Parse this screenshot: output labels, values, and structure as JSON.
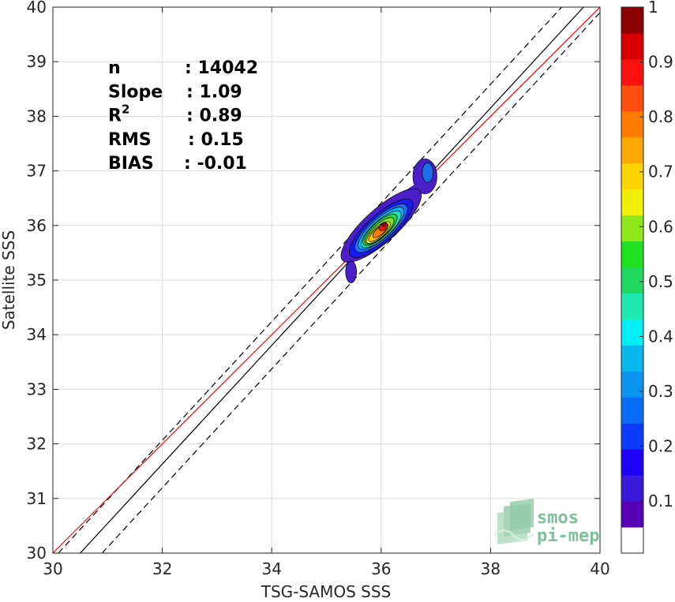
{
  "chart_data": {
    "type": "scatter",
    "subtype": "density-contour",
    "xlabel": "TSG-SAMOS SSS",
    "ylabel": "Satellite SSS",
    "xlim": [
      30,
      40
    ],
    "ylim": [
      30,
      40
    ],
    "xticks": [
      30,
      32,
      34,
      36,
      38,
      40
    ],
    "yticks": [
      30,
      31,
      32,
      33,
      34,
      35,
      36,
      37,
      38,
      39,
      40
    ],
    "grid": true,
    "stats": [
      {
        "key": "n",
        "sep": ": ",
        "value": "14042"
      },
      {
        "key": "Slope",
        "sep": ": ",
        "value": "1.09"
      },
      {
        "key": "R",
        "sup": "2",
        "sep": ": ",
        "value": "0.89"
      },
      {
        "key": "RMS",
        "sep": ": ",
        "value": "0.15"
      },
      {
        "key": "BIAS",
        "sep": ": ",
        "value": "-0.01"
      }
    ],
    "lines": [
      {
        "name": "one-to-one",
        "style": "solid",
        "color": "#000000",
        "x": [
          30.5,
          39.7
        ],
        "y": [
          30,
          40
        ]
      },
      {
        "name": "upper-bound",
        "style": "dashed",
        "color": "#000000",
        "x": [
          30.1,
          39.3
        ],
        "y": [
          30,
          40
        ]
      },
      {
        "name": "lower-bound",
        "style": "dashed",
        "color": "#000000",
        "x": [
          30.9,
          40.0
        ],
        "y": [
          30,
          39.9
        ]
      },
      {
        "name": "regression",
        "style": "solid",
        "color": "#ff0000",
        "x": [
          30.0,
          40.0
        ],
        "y": [
          30,
          40
        ]
      }
    ],
    "density_center": {
      "x": 36.05,
      "y": 36.0
    },
    "density_levels": [
      {
        "level": 0.05,
        "color": "#4b1fc8",
        "cx": 36.0,
        "cy": 36.0,
        "rx": 0.95,
        "ry": 0.3,
        "angle": -42
      },
      {
        "level": 0.1,
        "color": "#1a1aef",
        "cx": 36.0,
        "cy": 35.95,
        "rx": 0.75,
        "ry": 0.25,
        "angle": -42
      },
      {
        "level": 0.2,
        "color": "#1f6ff0",
        "cx": 36.0,
        "cy": 35.95,
        "rx": 0.62,
        "ry": 0.21,
        "angle": -42
      },
      {
        "level": 0.3,
        "color": "#10b0f0",
        "cx": 36.0,
        "cy": 35.95,
        "rx": 0.54,
        "ry": 0.18,
        "angle": -42
      },
      {
        "level": 0.4,
        "color": "#1ce0c0",
        "cx": 36.0,
        "cy": 35.93,
        "rx": 0.47,
        "ry": 0.16,
        "angle": -42
      },
      {
        "level": 0.5,
        "color": "#26d84a",
        "cx": 35.98,
        "cy": 35.92,
        "rx": 0.4,
        "ry": 0.14,
        "angle": -42
      },
      {
        "level": 0.6,
        "color": "#8ae02a",
        "cx": 35.97,
        "cy": 35.9,
        "rx": 0.34,
        "ry": 0.12,
        "angle": -42
      },
      {
        "level": 0.65,
        "color": "#f0f000",
        "cx": 35.95,
        "cy": 35.87,
        "rx": 0.28,
        "ry": 0.1,
        "angle": -42
      },
      {
        "level": 0.7,
        "color": "#fcc400",
        "cx": 35.95,
        "cy": 35.87,
        "rx": 0.23,
        "ry": 0.08,
        "angle": -42
      },
      {
        "level": 0.8,
        "color": "#ff7a00",
        "cx": 35.98,
        "cy": 35.9,
        "rx": 0.17,
        "ry": 0.065,
        "angle": -42
      },
      {
        "level": 0.9,
        "color": "#f21a00",
        "cx": 36.04,
        "cy": 35.98,
        "rx": 0.09,
        "ry": 0.06,
        "angle": -42
      },
      {
        "level": 1.0,
        "color": "#8c0000",
        "cx": 36.05,
        "cy": 36.02,
        "rx": 0.04,
        "ry": 0.04,
        "angle": 0
      }
    ],
    "secondary_blob": {
      "color_outer": "#4b1fc8",
      "color_inner": "#1a6fe8",
      "cx": 36.8,
      "cy": 36.9,
      "rx": 0.22,
      "ry": 0.32
    },
    "colorbar": {
      "min": 0,
      "max": 1,
      "ticks": [
        "0.1",
        "0.2",
        "0.3",
        "0.4",
        "0.5",
        "0.6",
        "0.7",
        "0.8",
        "0.9",
        "1"
      ],
      "tick_values": [
        0.1,
        0.2,
        0.3,
        0.4,
        0.5,
        0.6,
        0.7,
        0.8,
        0.9,
        1.0
      ],
      "colors": [
        "#ffffff",
        "#5a00b4",
        "#3a1ad8",
        "#1e00f8",
        "#0d3cf8",
        "#0a6cf5",
        "#0a94f0",
        "#08b8ec",
        "#00f0f8",
        "#1ce8b0",
        "#21d860",
        "#20e020",
        "#8ee81a",
        "#f0f000",
        "#fcd400",
        "#fca800",
        "#ff7c00",
        "#ff4e10",
        "#ff1010",
        "#d80000",
        "#8c0000"
      ]
    }
  },
  "logo": {
    "line1": "smos",
    "line2": "pi-mep"
  }
}
